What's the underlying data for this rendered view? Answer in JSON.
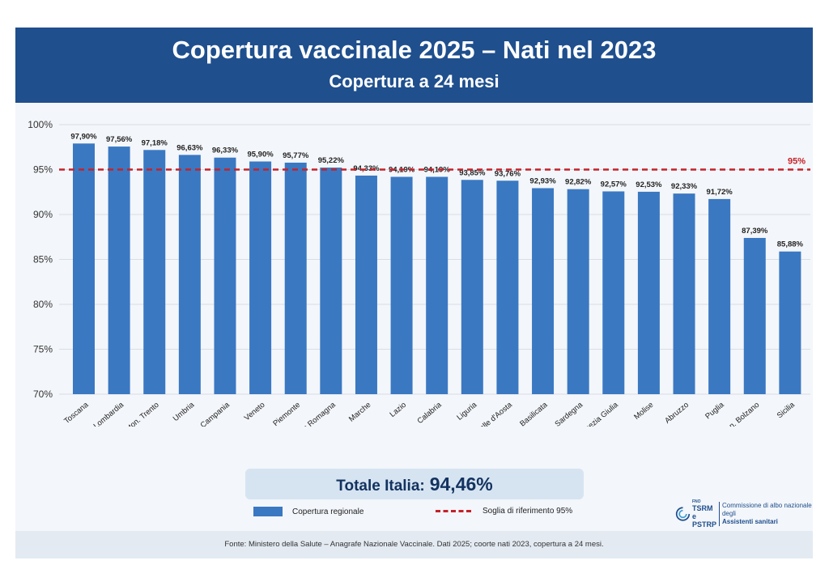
{
  "header": {
    "title": "Copertura vaccinale 2025 – Nati nel 2023",
    "subtitle": "Copertura a 24 mesi"
  },
  "chart_data": {
    "type": "bar",
    "categories": [
      "Toscana",
      "Lombardia",
      "Prov. Auton. Trento",
      "Umbria",
      "Campania",
      "Veneto",
      "Piemonte",
      "Emilia Romagna",
      "Marche",
      "Lazio",
      "Calabria",
      "Liguria",
      "Valle d'Aosta",
      "Basilicata",
      "Sardegna",
      "Friuli Venezia Giulia",
      "Molise",
      "Abruzzo",
      "Puglia",
      "Prov. Auton. Bolzano",
      "Sicilia"
    ],
    "values": [
      97.9,
      97.56,
      97.18,
      96.63,
      96.33,
      95.9,
      95.77,
      95.22,
      94.33,
      94.19,
      94.19,
      93.85,
      93.76,
      92.93,
      92.82,
      92.57,
      92.53,
      92.33,
      91.72,
      87.39,
      85.88
    ],
    "value_labels": [
      "97,90%",
      "97,56%",
      "97,18%",
      "96,63%",
      "96,33%",
      "95,90%",
      "95,77%",
      "95,22%",
      "94,33%",
      "94,19%",
      "94,19%",
      "93,85%",
      "93,76%",
      "92,93%",
      "92,82%",
      "92,57%",
      "92,53%",
      "92,33%",
      "91,72%",
      "87,39%",
      "85,88%"
    ],
    "yticks": [
      70,
      75,
      80,
      85,
      90,
      95,
      100
    ],
    "ytick_labels": [
      "70%",
      "75%",
      "80%",
      "85%",
      "90%",
      "95%",
      "100%"
    ],
    "ylim": [
      70,
      100
    ],
    "threshold": 95,
    "threshold_label": "95%",
    "grid": true,
    "colors": {
      "bar": "#3a78c2",
      "threshold": "#c4222a"
    }
  },
  "total": {
    "label": "Totale Italia:",
    "value": "94,46%"
  },
  "legend": {
    "bar_label": "Copertura regionale",
    "line_label": "Soglia di riferimento 95%"
  },
  "footer": {
    "text": "Fonte: Ministero della Salute – Anagrafe Nazionale Vaccinale. Dati 2025; coorte nati 2023, copertura a 24 mesi."
  },
  "logo": {
    "fno": "FNO",
    "tsrm": "TSRM e",
    "pstrp": "PSTRP",
    "line1": "Commissione di albo nazionale degli",
    "line2": "Assistenti sanitari"
  }
}
